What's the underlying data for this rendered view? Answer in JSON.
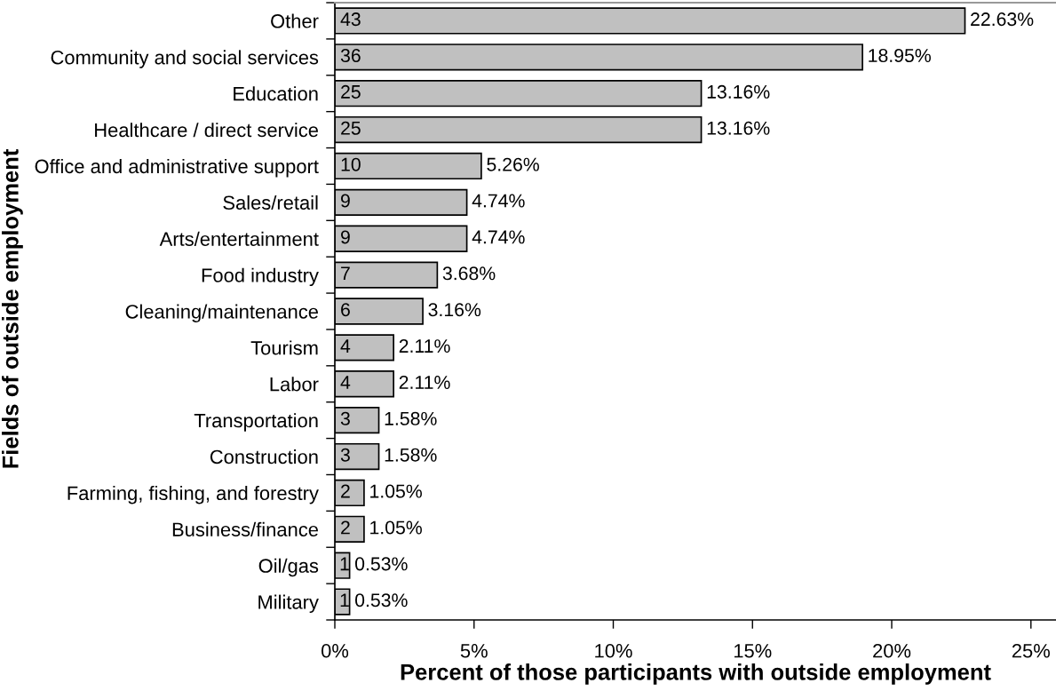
{
  "chart_data": {
    "type": "bar",
    "orientation": "horizontal",
    "xlabel": "Percent of those participants with outside employment",
    "ylabel": "Fields of outside employment",
    "categories": [
      "Other",
      "Community and social services",
      "Education",
      "Healthcare / direct service",
      "Office and administrative support",
      "Sales/retail",
      "Arts/entertainment",
      "Food industry",
      "Cleaning/maintenance",
      "Tourism",
      "Labor",
      "Transportation",
      "Construction",
      "Farming, fishing, and forestry",
      "Business/finance",
      "Oil/gas",
      "Military"
    ],
    "values": [
      22.63,
      18.95,
      13.16,
      13.16,
      5.26,
      4.74,
      4.74,
      3.68,
      3.16,
      2.11,
      2.11,
      1.58,
      1.58,
      1.05,
      1.05,
      0.53,
      0.53
    ],
    "color": "#c0c0c0",
    "value_labels": [
      "22.63%",
      "18.95%",
      "13.16%",
      "13.16%",
      "5.26%",
      "4.74%",
      "4.74%",
      "3.68%",
      "3.16%",
      "2.11%",
      "2.11%",
      "1.58%",
      "1.58%",
      "1.05%",
      "1.05%",
      "0.53%",
      "0.53%"
    ],
    "xlim": [
      0,
      25.9
    ],
    "xticks": [
      {
        "value": 0,
        "label": "0%"
      },
      {
        "value": 5,
        "label": "5%"
      },
      {
        "value": 10,
        "label": "10%"
      },
      {
        "value": 15,
        "label": "15%"
      },
      {
        "value": 20,
        "label": "20%"
      },
      {
        "value": 25,
        "label": "25%"
      }
    ],
    "grid": false,
    "legend": false,
    "annotations": [
      {
        "text": "43",
        "x": 0.57,
        "y": "Other"
      },
      {
        "text": "36",
        "x": 0.57,
        "y": "Community and social services"
      },
      {
        "text": "25",
        "x": 0.57,
        "y": "Education"
      },
      {
        "text": "25",
        "x": 0.57,
        "y": "Healthcare / direct service"
      },
      {
        "text": "10",
        "x": 0.57,
        "y": "Office and administrative support"
      },
      {
        "text": "9",
        "x": 0.38,
        "y": "Sales/retail"
      },
      {
        "text": "9",
        "x": 0.38,
        "y": "Arts/entertainment"
      },
      {
        "text": "7",
        "x": 0.38,
        "y": "Food industry"
      },
      {
        "text": "6",
        "x": 0.38,
        "y": "Cleaning/maintenance"
      },
      {
        "text": "4",
        "x": 0.38,
        "y": "Tourism"
      },
      {
        "text": "4",
        "x": 0.38,
        "y": "Labor"
      },
      {
        "text": "3",
        "x": 0.38,
        "y": "Transportation"
      },
      {
        "text": "3",
        "x": 0.38,
        "y": "Construction"
      },
      {
        "text": "2",
        "x": 0.38,
        "y": "Farming, fishing, and forestry"
      },
      {
        "text": "2",
        "x": 0.38,
        "y": "Business/finance"
      },
      {
        "text": "1",
        "x": 0.35,
        "y": "Oil/gas"
      },
      {
        "text": "1",
        "x": 0.35,
        "y": "Military"
      }
    ]
  }
}
